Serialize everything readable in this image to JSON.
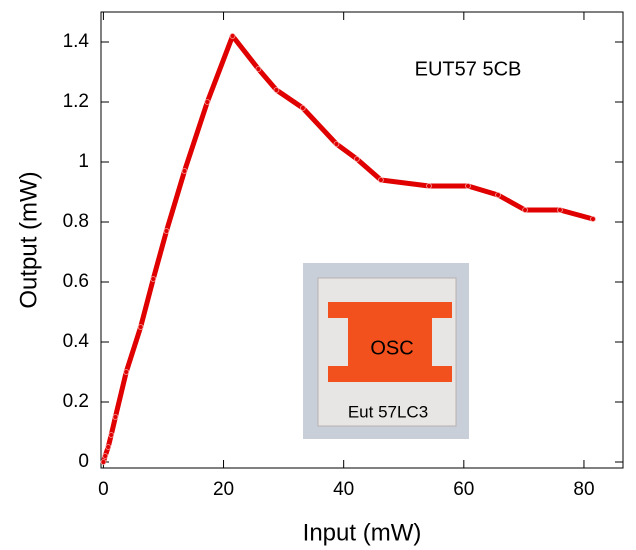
{
  "chart_data": {
    "type": "line",
    "annotation": "EUT57 5CB",
    "xlabel": "Input (mW)",
    "ylabel": "Output (mW)",
    "x": [
      0,
      0.3,
      0.8,
      1.3,
      2,
      3.8,
      6.2,
      8.3,
      10.5,
      13.5,
      17.3,
      21.5,
      25.8,
      28.8,
      33.2,
      38.8,
      42.2,
      46.2,
      54.2,
      60.7,
      65.7,
      70.2,
      76,
      81.5
    ],
    "series": [
      {
        "color": "#e00000",
        "values": [
          0,
          0.02,
          0.05,
          0.09,
          0.15,
          0.3,
          0.45,
          0.61,
          0.77,
          0.97,
          1.2,
          1.42,
          1.31,
          1.24,
          1.18,
          1.06,
          1.01,
          0.94,
          0.92,
          0.92,
          0.89,
          0.84,
          0.84,
          0.81
        ]
      }
    ],
    "xlim": [
      -0.4,
      86.5
    ],
    "ylim": [
      -0.02,
      1.5
    ],
    "xticks": [
      0,
      20,
      40,
      60,
      80
    ],
    "yticks": [
      0,
      0.2,
      0.4,
      0.6,
      0.8,
      1,
      1.2,
      1.4
    ],
    "inset": {
      "labels": [
        "OSC",
        "Eut 57LC3"
      ]
    }
  }
}
